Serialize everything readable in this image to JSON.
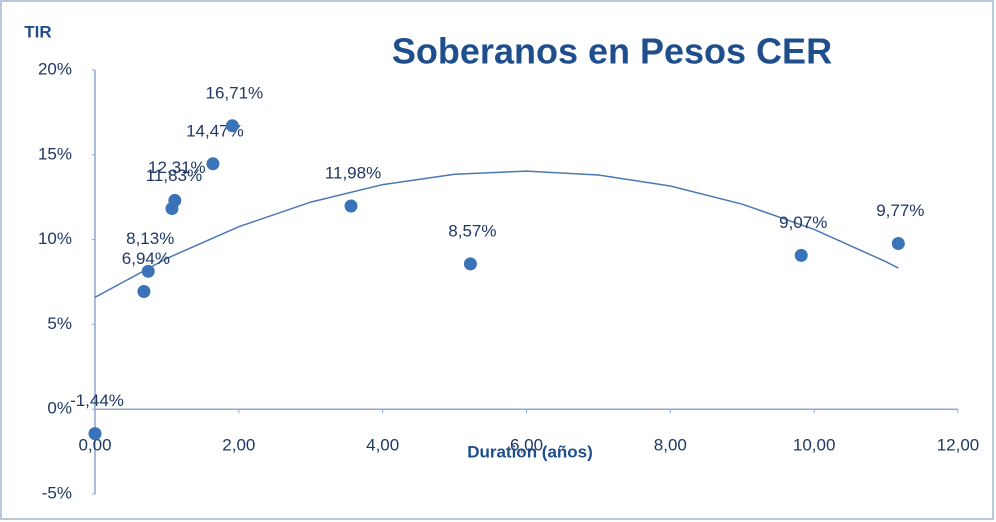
{
  "chart_data": {
    "type": "scatter",
    "title": "Soberanos en Pesos CER",
    "y_label": "TIR",
    "x_label": "Duration (años)",
    "color": "#3a73b8",
    "trend_color": "#4a78b5",
    "series": [
      {
        "name": null,
        "x": [
          0.0,
          0.68,
          0.74,
          1.07,
          1.11,
          1.64,
          1.91,
          3.56,
          5.22,
          9.82,
          11.17
        ],
        "values": [
          -1.44,
          6.94,
          8.13,
          11.83,
          12.31,
          14.47,
          16.71,
          11.98,
          8.57,
          9.07,
          9.77
        ],
        "value_labels": [
          "-1,44%",
          "6,94%",
          "8,13%",
          "11,83%",
          "12,31%",
          "14,47%",
          "16,71%",
          "11,98%",
          "8,57%",
          "9,07%",
          "9,77%"
        ]
      }
    ],
    "trendline": {
      "x": [
        0,
        1,
        2,
        3,
        4,
        5,
        6,
        7,
        8,
        9,
        10,
        11,
        11.17
      ],
      "values": [
        6.6,
        8.89,
        10.76,
        12.21,
        13.24,
        13.85,
        14.04,
        13.81,
        13.16,
        12.09,
        10.6,
        8.69,
        8.32
      ]
    },
    "xlim": [
      0,
      12
    ],
    "ylim": [
      -5,
      20
    ],
    "xticks": [
      {
        "value": 0,
        "label": "0,00"
      },
      {
        "value": 2,
        "label": "2,00"
      },
      {
        "value": 4,
        "label": "4,00"
      },
      {
        "value": 6,
        "label": "6,00"
      },
      {
        "value": 8,
        "label": "8,00"
      },
      {
        "value": 10,
        "label": "10,00"
      },
      {
        "value": 12,
        "label": "12,00"
      }
    ],
    "yticks": [
      {
        "value": -5,
        "label": "-5%"
      },
      {
        "value": 0,
        "label": "0%"
      },
      {
        "value": 5,
        "label": "5%"
      },
      {
        "value": 10,
        "label": "10%"
      },
      {
        "value": 15,
        "label": "15%"
      },
      {
        "value": 20,
        "label": "20%"
      }
    ]
  }
}
